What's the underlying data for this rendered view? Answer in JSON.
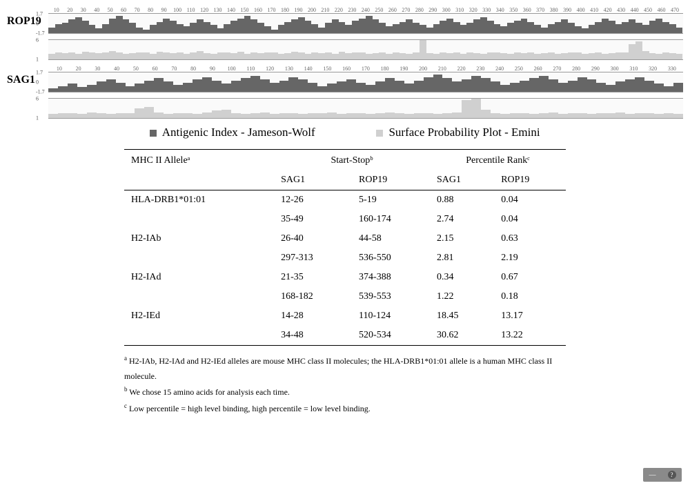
{
  "charts": [
    {
      "label": "ROP19",
      "x_end": 470,
      "x_ticks": [
        10,
        20,
        30,
        40,
        50,
        60,
        70,
        80,
        90,
        100,
        110,
        120,
        130,
        140,
        150,
        160,
        170,
        180,
        190,
        200,
        210,
        220,
        230,
        240,
        250,
        260,
        270,
        280,
        290,
        300,
        310,
        320,
        330,
        340,
        350,
        360,
        370,
        380,
        390,
        400,
        410,
        420,
        430,
        440,
        450,
        460,
        470
      ],
      "tracks": [
        {
          "type": "antigenic",
          "color": "#666666",
          "yticks": [
            "1.7",
            "0",
            "-1.7"
          ],
          "values": [
            0.5,
            0.8,
            0.9,
            1.2,
            1.4,
            1.1,
            0.7,
            0.4,
            0.8,
            1.3,
            1.5,
            1.2,
            0.9,
            0.5,
            0.3,
            0.7,
            1.0,
            1.3,
            1.1,
            0.8,
            0.6,
            0.9,
            1.2,
            1.0,
            0.7,
            0.4,
            0.8,
            1.1,
            1.3,
            1.5,
            1.2,
            0.9,
            0.6,
            0.3,
            0.7,
            1.0,
            1.2,
            1.4,
            1.1,
            0.8,
            0.5,
            0.9,
            1.2,
            1.0,
            0.7,
            1.1,
            1.3,
            1.5,
            1.2,
            0.9,
            0.6,
            0.8,
            1.0,
            1.2,
            0.9,
            0.7,
            0.5,
            0.8,
            1.1,
            1.3,
            1.0,
            0.7,
            0.9,
            1.2,
            1.4,
            1.1,
            0.8,
            0.6,
            0.9,
            1.1,
            1.3,
            1.0,
            0.7,
            0.5,
            0.8,
            1.0,
            1.2,
            0.9,
            0.6,
            0.4,
            0.7,
            1.0,
            1.3,
            1.1,
            0.8,
            1.0,
            1.2,
            0.9,
            0.7,
            1.1,
            1.3,
            1.0,
            0.8,
            0.5
          ]
        },
        {
          "type": "surface",
          "color": "#d0d0d0",
          "yticks": [
            "6",
            "1"
          ],
          "values": [
            1.0,
            1.2,
            1.1,
            1.3,
            1.0,
            1.4,
            1.2,
            1.1,
            1.3,
            1.5,
            1.2,
            1.0,
            1.1,
            1.3,
            1.2,
            1.0,
            1.4,
            1.2,
            1.1,
            1.3,
            1.0,
            1.2,
            1.5,
            1.1,
            1.0,
            1.3,
            1.2,
            1.1,
            1.4,
            1.0,
            1.2,
            1.1,
            1.3,
            1.2,
            1.0,
            1.1,
            1.4,
            1.2,
            1.0,
            1.3,
            1.1,
            1.2,
            1.0,
            1.4,
            1.1,
            1.2,
            1.3,
            1.0,
            1.1,
            1.2,
            1.0,
            1.3,
            1.1,
            1.0,
            1.2,
            3.5,
            1.1,
            1.0,
            1.2,
            1.1,
            1.3,
            1.0,
            1.2,
            1.1,
            1.0,
            1.3,
            1.2,
            1.1,
            1.0,
            1.2,
            1.1,
            1.3,
            1.0,
            1.1,
            1.2,
            1.0,
            1.1,
            1.3,
            1.2,
            1.0,
            1.1,
            1.2,
            1.0,
            1.1,
            1.3,
            1.2,
            2.8,
            3.2,
            1.5,
            1.1,
            1.0,
            1.2,
            1.1,
            1.0
          ]
        }
      ]
    },
    {
      "label": "SAG1",
      "x_end": 330,
      "x_ticks": [
        10,
        20,
        30,
        40,
        50,
        60,
        70,
        80,
        90,
        100,
        110,
        120,
        130,
        140,
        150,
        160,
        170,
        180,
        190,
        200,
        210,
        220,
        230,
        240,
        250,
        260,
        270,
        280,
        290,
        300,
        310,
        320,
        330
      ],
      "tracks": [
        {
          "type": "antigenic",
          "color": "#666666",
          "yticks": [
            "1.7",
            "0",
            "-1.7"
          ],
          "values": [
            0.3,
            0.5,
            0.7,
            0.4,
            0.6,
            0.9,
            1.1,
            0.8,
            0.5,
            0.7,
            1.0,
            1.2,
            0.9,
            0.6,
            0.8,
            1.1,
            1.3,
            1.0,
            0.7,
            1.0,
            1.2,
            1.4,
            1.1,
            0.8,
            1.0,
            1.3,
            1.1,
            0.8,
            0.5,
            0.7,
            0.9,
            1.1,
            0.8,
            0.6,
            0.9,
            1.2,
            1.0,
            0.7,
            1.0,
            1.3,
            1.5,
            1.2,
            0.9,
            1.1,
            1.4,
            1.2,
            0.9,
            0.6,
            0.8,
            1.0,
            1.2,
            1.4,
            1.1,
            0.8,
            1.0,
            1.3,
            1.1,
            0.8,
            0.6,
            0.9,
            1.1,
            1.3,
            1.0,
            0.7,
            0.5,
            0.8
          ]
        },
        {
          "type": "surface",
          "color": "#d0d0d0",
          "yticks": [
            "6",
            "1"
          ],
          "values": [
            1.0,
            1.1,
            1.2,
            1.0,
            1.3,
            1.1,
            1.0,
            1.2,
            1.1,
            2.2,
            2.5,
            1.3,
            1.0,
            1.2,
            1.1,
            1.0,
            1.3,
            1.8,
            2.0,
            1.2,
            1.0,
            1.1,
            1.3,
            1.0,
            1.2,
            1.1,
            1.0,
            1.2,
            1.1,
            1.3,
            1.0,
            1.1,
            1.2,
            1.0,
            1.1,
            1.3,
            1.2,
            1.0,
            1.1,
            1.2,
            1.0,
            1.1,
            1.3,
            4.2,
            4.5,
            2.0,
            1.2,
            1.0,
            1.1,
            1.2,
            1.0,
            1.1,
            1.3,
            1.0,
            1.2,
            1.1,
            1.0,
            1.2,
            1.1,
            1.3,
            1.0,
            1.1,
            1.2,
            1.0,
            1.1,
            1.0
          ]
        }
      ]
    }
  ],
  "legend": {
    "dark_swatch": "#666666",
    "dark_label": "Antigenic Index - Jameson-Wolf",
    "light_swatch": "#d0d0d0",
    "light_label": "Surface Probability Plot - Emini"
  },
  "table": {
    "header1": {
      "c1": "MHC II Alleleᵃ",
      "c2": "Start-Stopᵇ",
      "c3": "Percentile Rankᶜ"
    },
    "header2": {
      "c1": "",
      "c2": "SAG1",
      "c3": "ROP19",
      "c4": "SAG1",
      "c5": "ROP19"
    },
    "rows": [
      {
        "allele": "HLA-DRB1*01:01",
        "sag1_ss": "12-26",
        "rop19_ss": "5-19",
        "sag1_pr": "0.88",
        "rop19_pr": "0.04"
      },
      {
        "allele": "",
        "sag1_ss": "35-49",
        "rop19_ss": "160-174",
        "sag1_pr": "2.74",
        "rop19_pr": "0.04"
      },
      {
        "allele": "H2-IAb",
        "sag1_ss": "26-40",
        "rop19_ss": "44-58",
        "sag1_pr": "2.15",
        "rop19_pr": "0.63"
      },
      {
        "allele": "",
        "sag1_ss": "297-313",
        "rop19_ss": "536-550",
        "sag1_pr": "2.81",
        "rop19_pr": "2.19"
      },
      {
        "allele": "H2-IAd",
        "sag1_ss": "21-35",
        "rop19_ss": "374-388",
        "sag1_pr": "0.34",
        "rop19_pr": "0.67"
      },
      {
        "allele": "",
        "sag1_ss": "168-182",
        "rop19_ss": "539-553",
        "sag1_pr": "1.22",
        "rop19_pr": "0.18"
      },
      {
        "allele": "H2-IEd",
        "sag1_ss": "14-28",
        "rop19_ss": "110-124",
        "sag1_pr": "18.45",
        "rop19_pr": "13.17"
      },
      {
        "allele": "",
        "sag1_ss": "34-48",
        "rop19_ss": "520-534",
        "sag1_pr": "30.62",
        "rop19_pr": "13.22"
      }
    ]
  },
  "footnotes": {
    "a": "H2-IAb, H2-IAd and H2-IEd alleles are mouse MHC class II molecules; the HLA-DRB1*01:01 allele is a human MHC class II molecule.",
    "b": "We chose 15 amino acids for analysis each time.",
    "c": "Low percentile = high level binding, high percentile = low level binding."
  },
  "widget": {
    "icon1": "—",
    "icon2": "?"
  }
}
